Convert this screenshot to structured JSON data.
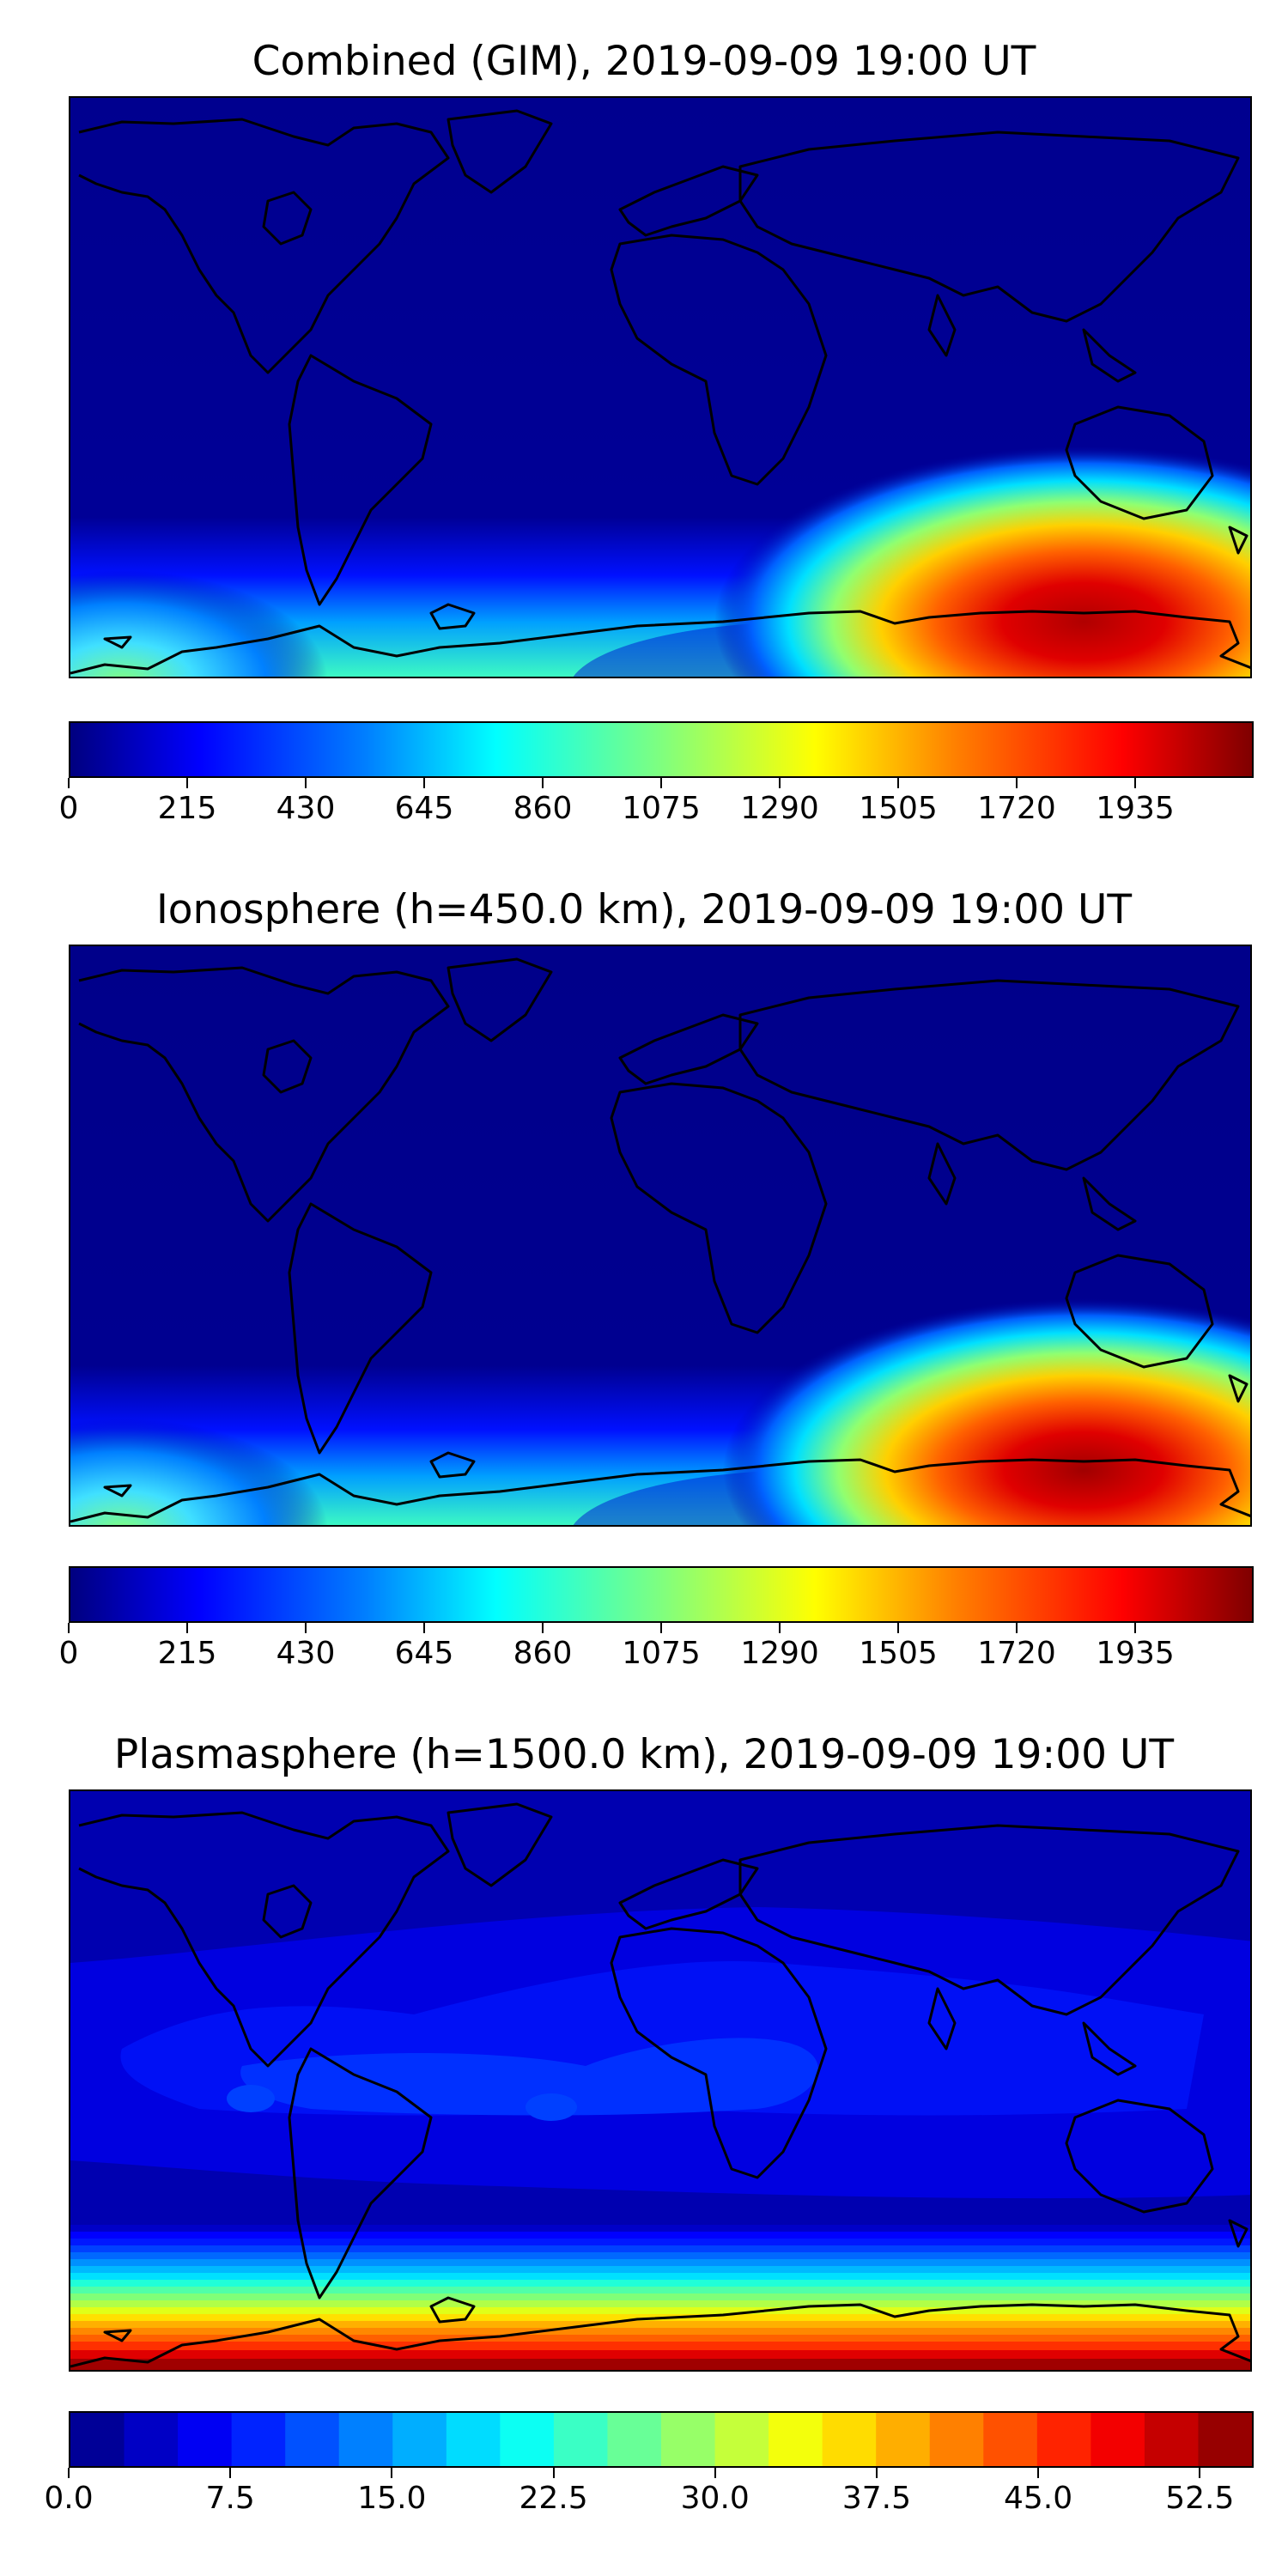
{
  "panels": [
    {
      "id": "combined",
      "title": "Combined (GIM), 2019-09-09 19:00 UT",
      "colorbar": {
        "min": 0,
        "max": 2150,
        "style": "continuous",
        "colormap": "jet",
        "ticks": [
          "0",
          "215",
          "430",
          "645",
          "860",
          "1075",
          "1290",
          "1505",
          "1720",
          "1935"
        ],
        "tick_values": [
          0,
          215,
          430,
          645,
          860,
          1075,
          1290,
          1505,
          1720,
          1935
        ]
      },
      "features": [
        "high-latitude southern band",
        "peak over East Antarctica south of Australia (~1935+)",
        "secondary enhancement near Antarctic Peninsula"
      ]
    },
    {
      "id": "ionosphere",
      "title": "Ionosphere  (h=450.0 km), 2019-09-09 19:00 UT",
      "colorbar": {
        "min": 0,
        "max": 2150,
        "style": "continuous",
        "colormap": "jet",
        "ticks": [
          "0",
          "215",
          "430",
          "645",
          "860",
          "1075",
          "1290",
          "1505",
          "1720",
          "1935"
        ],
        "tick_values": [
          0,
          215,
          430,
          645,
          860,
          1075,
          1290,
          1505,
          1720,
          1935
        ]
      },
      "features": [
        "same structure as combined",
        "slightly lower peak over East Antarctica"
      ]
    },
    {
      "id": "plasmasphere",
      "title": "Plasmasphere (h=1500.0 km), 2019-09-09 19:00 UT",
      "colorbar": {
        "min": 0,
        "max": 55,
        "style": "discrete",
        "colormap": "jet",
        "levels": 22,
        "ticks": [
          "0.0",
          "7.5",
          "15.0",
          "22.5",
          "30.0",
          "37.5",
          "45.0",
          "52.5"
        ],
        "tick_values": [
          0,
          7.5,
          15,
          22.5,
          30,
          37.5,
          45,
          52.5
        ]
      },
      "features": [
        "low-latitude enhancement band",
        "strong gradient toward south pole",
        "maximum ~52.5+ at southern edge"
      ]
    }
  ],
  "colors": {
    "jet": [
      "#00007f",
      "#0000ff",
      "#007fff",
      "#00ffff",
      "#7fff7f",
      "#ffff00",
      "#ff7f00",
      "#ff0000",
      "#7f0000"
    ],
    "coastline": "#000000"
  }
}
